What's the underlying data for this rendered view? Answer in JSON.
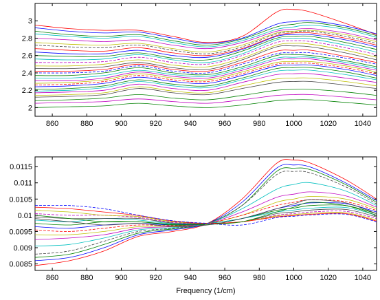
{
  "chart_data": [
    {
      "type": "line",
      "title": "",
      "xlabel": "",
      "ylabel": "",
      "xlim": [
        850,
        1048
      ],
      "ylim": [
        1.9,
        3.2
      ],
      "xticks": [
        860,
        880,
        900,
        920,
        940,
        960,
        980,
        1000,
        1020,
        1040
      ],
      "xtick_labels": [
        "860",
        "880",
        "900",
        "920",
        "940",
        "960",
        "980",
        "1000",
        "1020",
        "1040"
      ],
      "yticks": [
        2,
        2.2,
        2.4,
        2.6,
        2.8,
        3
      ],
      "ytick_labels": [
        "2",
        "2.2",
        "2.4",
        "2.6",
        "2.8",
        "3"
      ],
      "grid": false,
      "x": [
        850,
        870,
        890,
        910,
        930,
        950,
        970,
        990,
        1000,
        1010,
        1030,
        1048
      ],
      "series": [
        {
          "color": "#ff0000",
          "values": [
            2.95,
            2.91,
            2.89,
            2.89,
            2.82,
            2.75,
            2.82,
            3.1,
            3.13,
            3.1,
            2.97,
            2.84
          ]
        },
        {
          "color": "#0000ff",
          "values": [
            2.92,
            2.88,
            2.86,
            2.87,
            2.8,
            2.74,
            2.8,
            2.96,
            2.99,
            3.0,
            2.94,
            2.85
          ]
        },
        {
          "color": "#008000",
          "values": [
            2.88,
            2.84,
            2.82,
            2.84,
            2.77,
            2.72,
            2.79,
            2.93,
            2.96,
            2.98,
            2.92,
            2.83
          ]
        },
        {
          "color": "#00bfbf",
          "values": [
            2.85,
            2.82,
            2.8,
            2.82,
            2.75,
            2.7,
            2.77,
            2.9,
            2.93,
            2.95,
            2.9,
            2.81
          ]
        },
        {
          "color": "#bf00bf",
          "values": [
            2.8,
            2.78,
            2.76,
            2.78,
            2.72,
            2.68,
            2.75,
            2.88,
            2.9,
            2.91,
            2.86,
            2.78
          ]
        },
        {
          "color": "#bfbf00",
          "values": [
            2.75,
            2.73,
            2.72,
            2.74,
            2.68,
            2.64,
            2.72,
            2.86,
            2.88,
            2.89,
            2.84,
            2.76
          ]
        },
        {
          "color": "#404040",
          "dash": true,
          "values": [
            2.72,
            2.7,
            2.69,
            2.72,
            2.66,
            2.62,
            2.7,
            2.85,
            2.87,
            2.88,
            2.82,
            2.74
          ]
        },
        {
          "color": "#ff0000",
          "values": [
            2.68,
            2.66,
            2.65,
            2.69,
            2.63,
            2.6,
            2.68,
            2.83,
            2.86,
            2.86,
            2.8,
            2.72
          ]
        },
        {
          "color": "#0000ff",
          "values": [
            2.64,
            2.62,
            2.62,
            2.66,
            2.6,
            2.58,
            2.67,
            2.82,
            2.84,
            2.84,
            2.78,
            2.7
          ]
        },
        {
          "color": "#008000",
          "values": [
            2.6,
            2.59,
            2.59,
            2.63,
            2.57,
            2.55,
            2.65,
            2.8,
            2.82,
            2.82,
            2.75,
            2.67
          ]
        },
        {
          "color": "#00bfbf",
          "values": [
            2.56,
            2.55,
            2.56,
            2.61,
            2.55,
            2.52,
            2.62,
            2.78,
            2.8,
            2.79,
            2.72,
            2.64
          ]
        },
        {
          "color": "#bf00bf",
          "dash": true,
          "values": [
            2.52,
            2.52,
            2.53,
            2.58,
            2.52,
            2.5,
            2.6,
            2.75,
            2.77,
            2.76,
            2.69,
            2.61
          ]
        },
        {
          "color": "#bfbf00",
          "values": [
            2.48,
            2.48,
            2.5,
            2.55,
            2.49,
            2.47,
            2.57,
            2.72,
            2.74,
            2.73,
            2.66,
            2.58
          ]
        },
        {
          "color": "#404040",
          "values": [
            2.45,
            2.45,
            2.47,
            2.52,
            2.46,
            2.44,
            2.55,
            2.7,
            2.71,
            2.7,
            2.63,
            2.55
          ]
        },
        {
          "color": "#ff0000",
          "values": [
            2.42,
            2.42,
            2.44,
            2.5,
            2.44,
            2.42,
            2.52,
            2.65,
            2.66,
            2.66,
            2.59,
            2.52
          ]
        },
        {
          "color": "#0000ff",
          "dash": true,
          "values": [
            2.4,
            2.4,
            2.42,
            2.48,
            2.42,
            2.4,
            2.5,
            2.62,
            2.63,
            2.63,
            2.57,
            2.5
          ]
        },
        {
          "color": "#008000",
          "values": [
            2.37,
            2.37,
            2.4,
            2.46,
            2.4,
            2.38,
            2.47,
            2.6,
            2.61,
            2.6,
            2.54,
            2.47
          ]
        },
        {
          "color": "#00bfbf",
          "values": [
            2.34,
            2.34,
            2.37,
            2.43,
            2.38,
            2.36,
            2.45,
            2.57,
            2.58,
            2.58,
            2.52,
            2.45
          ]
        },
        {
          "color": "#bf00bf",
          "values": [
            2.31,
            2.31,
            2.34,
            2.41,
            2.36,
            2.34,
            2.43,
            2.55,
            2.56,
            2.56,
            2.5,
            2.43
          ]
        },
        {
          "color": "#bfbf00",
          "values": [
            2.28,
            2.29,
            2.32,
            2.39,
            2.34,
            2.32,
            2.41,
            2.52,
            2.53,
            2.53,
            2.48,
            2.41
          ]
        },
        {
          "color": "#ff0000",
          "dash": true,
          "values": [
            2.26,
            2.27,
            2.3,
            2.37,
            2.32,
            2.3,
            2.39,
            2.5,
            2.51,
            2.51,
            2.46,
            2.39
          ]
        },
        {
          "color": "#0000ff",
          "values": [
            2.24,
            2.25,
            2.28,
            2.35,
            2.3,
            2.28,
            2.37,
            2.48,
            2.49,
            2.49,
            2.44,
            2.37
          ]
        },
        {
          "color": "#008000",
          "values": [
            2.21,
            2.22,
            2.25,
            2.32,
            2.27,
            2.25,
            2.34,
            2.45,
            2.46,
            2.46,
            2.41,
            2.34
          ]
        },
        {
          "color": "#00bfbf",
          "values": [
            2.19,
            2.2,
            2.23,
            2.3,
            2.25,
            2.23,
            2.32,
            2.42,
            2.43,
            2.43,
            2.38,
            2.32
          ]
        },
        {
          "color": "#bf00bf",
          "values": [
            2.17,
            2.18,
            2.2,
            2.27,
            2.22,
            2.2,
            2.29,
            2.38,
            2.39,
            2.39,
            2.34,
            2.29
          ]
        },
        {
          "color": "#bfbf00",
          "values": [
            2.14,
            2.15,
            2.17,
            2.24,
            2.19,
            2.17,
            2.25,
            2.33,
            2.34,
            2.34,
            2.3,
            2.25
          ]
        },
        {
          "color": "#404040",
          "values": [
            2.12,
            2.13,
            2.15,
            2.22,
            2.17,
            2.15,
            2.22,
            2.29,
            2.3,
            2.3,
            2.26,
            2.22
          ]
        },
        {
          "color": "#008000",
          "values": [
            2.08,
            2.09,
            2.11,
            2.15,
            2.11,
            2.09,
            2.14,
            2.2,
            2.21,
            2.21,
            2.18,
            2.14
          ]
        },
        {
          "color": "#bf00bf",
          "values": [
            2.05,
            2.06,
            2.07,
            2.1,
            2.07,
            2.05,
            2.09,
            2.14,
            2.15,
            2.15,
            2.12,
            2.09
          ]
        },
        {
          "color": "#008000",
          "values": [
            2.0,
            2.01,
            2.02,
            2.05,
            2.02,
            2.0,
            2.03,
            2.08,
            2.09,
            2.09,
            2.06,
            2.03
          ]
        }
      ]
    },
    {
      "type": "line",
      "title": "",
      "xlabel": "Frequency (1/cm)",
      "ylabel": "",
      "xlim": [
        850,
        1048
      ],
      "ylim": [
        0.0083,
        0.0118
      ],
      "xticks": [
        860,
        880,
        900,
        920,
        940,
        960,
        980,
        1000,
        1020,
        1040
      ],
      "xtick_labels": [
        "860",
        "880",
        "900",
        "920",
        "940",
        "960",
        "980",
        "1000",
        "1020",
        "1040"
      ],
      "yticks": [
        0.0085,
        0.009,
        0.0095,
        0.01,
        0.0105,
        0.011,
        0.0115
      ],
      "ytick_labels": [
        "0.0085",
        "0.009",
        "0.0095",
        "0.01",
        "0.0105",
        "0.011",
        "0.0115"
      ],
      "grid": false,
      "x": [
        850,
        870,
        890,
        910,
        930,
        950,
        970,
        990,
        1000,
        1010,
        1030,
        1048
      ],
      "series": [
        {
          "color": "#ff0000",
          "values": [
            0.00845,
            0.0086,
            0.0089,
            0.00935,
            0.0095,
            0.00975,
            0.0105,
            0.0116,
            0.0117,
            0.0116,
            0.0111,
            0.0105
          ]
        },
        {
          "color": "#0000ff",
          "values": [
            0.0086,
            0.0087,
            0.009,
            0.0094,
            0.00955,
            0.00975,
            0.0104,
            0.01145,
            0.01155,
            0.01148,
            0.011,
            0.01045
          ]
        },
        {
          "color": "#008000",
          "values": [
            0.0087,
            0.0088,
            0.0091,
            0.00945,
            0.00958,
            0.00975,
            0.0103,
            0.01135,
            0.01145,
            0.0114,
            0.01095,
            0.0104
          ]
        },
        {
          "color": "#404040",
          "dash": true,
          "values": [
            0.0088,
            0.0089,
            0.0092,
            0.0095,
            0.0096,
            0.00975,
            0.0103,
            0.01125,
            0.01135,
            0.0113,
            0.01088,
            0.01035
          ]
        },
        {
          "color": "#00bfbf",
          "values": [
            0.00905,
            0.0091,
            0.0093,
            0.00955,
            0.00962,
            0.00975,
            0.0102,
            0.0108,
            0.01095,
            0.011,
            0.01075,
            0.0103
          ]
        },
        {
          "color": "#bf00bf",
          "values": [
            0.00925,
            0.0093,
            0.0094,
            0.0096,
            0.00965,
            0.00975,
            0.0101,
            0.01055,
            0.01065,
            0.01072,
            0.0106,
            0.01025
          ]
        },
        {
          "color": "#bfbf00",
          "values": [
            0.0094,
            0.0094,
            0.0095,
            0.00965,
            0.00967,
            0.00975,
            0.01,
            0.0104,
            0.0105,
            0.01058,
            0.0105,
            0.0102
          ]
        },
        {
          "color": "#ff0000",
          "dash": true,
          "values": [
            0.00955,
            0.0095,
            0.0096,
            0.0097,
            0.00968,
            0.00975,
            0.01,
            0.0103,
            0.0104,
            0.01048,
            0.01042,
            0.01015
          ]
        },
        {
          "color": "#0000ff",
          "values": [
            0.00965,
            0.0096,
            0.0097,
            0.00975,
            0.0097,
            0.00975,
            0.0099,
            0.0102,
            0.0103,
            0.01038,
            0.01036,
            0.0101
          ]
        },
        {
          "color": "#008000",
          "values": [
            0.00975,
            0.0097,
            0.0098,
            0.0098,
            0.00972,
            0.00975,
            0.0099,
            0.01015,
            0.01022,
            0.0103,
            0.0103,
            0.01005
          ]
        },
        {
          "color": "#00bfbf",
          "values": [
            0.00985,
            0.0098,
            0.0099,
            0.00985,
            0.00974,
            0.00975,
            0.0099,
            0.0101,
            0.01016,
            0.01022,
            0.01024,
            0.01
          ]
        },
        {
          "color": "#404040",
          "values": [
            0.00995,
            0.0099,
            0.0099,
            0.0099,
            0.00976,
            0.00975,
            0.0098,
            0.01005,
            0.0101,
            0.01016,
            0.01018,
            0.00995
          ]
        },
        {
          "color": "#bf00bf",
          "dash": true,
          "values": [
            0.01005,
            0.01,
            0.01,
            0.00993,
            0.00978,
            0.00975,
            0.0098,
            0.01,
            0.01005,
            0.0101,
            0.01012,
            0.0099
          ]
        },
        {
          "color": "#bfbf00",
          "values": [
            0.01015,
            0.0101,
            0.01,
            0.00996,
            0.0098,
            0.00975,
            0.0098,
            0.00998,
            0.01002,
            0.01006,
            0.01008,
            0.00985
          ]
        },
        {
          "color": "#ff0000",
          "values": [
            0.01025,
            0.0102,
            0.0101,
            0.00999,
            0.00982,
            0.00975,
            0.0098,
            0.00995,
            0.00999,
            0.01003,
            0.01005,
            0.00982
          ]
        },
        {
          "color": "#0000ff",
          "dash": true,
          "values": [
            0.0103,
            0.0103,
            0.0102,
            0.01,
            0.00983,
            0.00975,
            0.0097,
            0.00993,
            0.00997,
            0.01001,
            0.01003,
            0.0098
          ]
        },
        {
          "color": "#008000",
          "values": [
            0.01,
            0.0099,
            0.0098,
            0.0098,
            0.0097,
            0.00972,
            0.0098,
            0.0101,
            0.01025,
            0.0104,
            0.0103,
            0.01
          ]
        },
        {
          "color": "#404040",
          "values": [
            0.0099,
            0.0098,
            0.0097,
            0.00975,
            0.00965,
            0.0097,
            0.0099,
            0.0102,
            0.01035,
            0.01048,
            0.01038,
            0.01005
          ]
        }
      ]
    }
  ]
}
